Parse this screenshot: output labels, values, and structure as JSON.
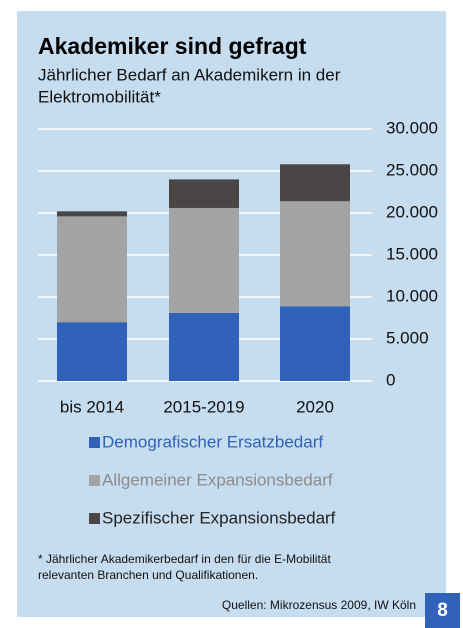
{
  "chart_data": {
    "type": "stacked_bar",
    "title": "Akademiker sind gefragt",
    "subtitle": [
      "Jährlicher Bedarf an Akademikern in der",
      "Elektromobilität*"
    ],
    "categories": [
      "bis 2014",
      "2015-2019",
      "2020"
    ],
    "series": [
      {
        "name": "Demografischer Ersatzbedarf",
        "color": "#2f62b8",
        "values": [
          7000,
          8100,
          8900
        ]
      },
      {
        "name": "Allgemeiner Expansionsbedarf",
        "color": "#a3a3a3",
        "values": [
          12600,
          12500,
          12500
        ]
      },
      {
        "name": "Spezifischer Expansionsbedarf",
        "color": "#4b4646",
        "values": [
          600,
          3400,
          4400
        ]
      }
    ],
    "ylim": [
      0,
      30000
    ],
    "yticks": [
      0,
      {
        "value": 5000,
        "label": "5.000"
      },
      {
        "value": 10000,
        "label": "10.000"
      },
      {
        "value": 15000,
        "label": "15.000"
      },
      {
        "value": 20000,
        "label": "20.000"
      },
      {
        "value": 25000,
        "label": "25.000"
      },
      {
        "value": 30000,
        "label": "30.000"
      }
    ],
    "grid": true,
    "footnote": [
      "* Jährlicher Akademikerbedarf in den für die E-Mobilität",
      "relevanten Branchen und Qualifikationen."
    ],
    "source": "Quellen: Mikrozensus 2009, IW Köln",
    "badge": "8"
  }
}
